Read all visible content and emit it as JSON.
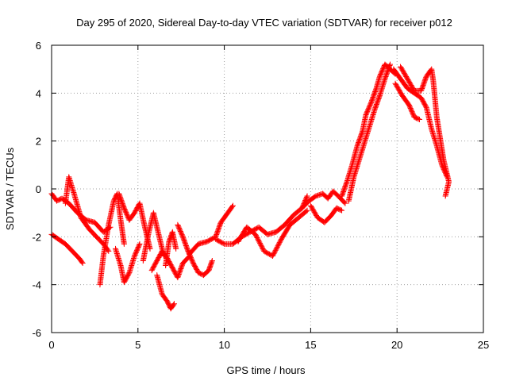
{
  "chart_data": {
    "type": "scatter",
    "title": "Day 295 of 2020, Sidereal Day-to-day VTEC variation (SDTVAR) for receiver p012",
    "xlabel": "GPS time / hours",
    "ylabel": "SDTVAR / TECUs",
    "xlim": [
      0,
      25
    ],
    "ylim": [
      -6,
      6
    ],
    "xticks": [
      0,
      5,
      10,
      15,
      20,
      25
    ],
    "yticks": [
      -6,
      -4,
      -2,
      0,
      2,
      4,
      6
    ],
    "grid": true,
    "marker": "+",
    "color": "#ff0000",
    "series": [
      {
        "name": "SDTVAR",
        "tracks": [
          [
            [
              0.0,
              -0.2
            ],
            [
              0.3,
              -0.5
            ],
            [
              0.6,
              -0.4
            ],
            [
              1.0,
              -0.6
            ],
            [
              1.5,
              -1.0
            ],
            [
              2.0,
              -1.3
            ],
            [
              2.5,
              -1.4
            ],
            [
              3.0,
              -1.8
            ],
            [
              3.4,
              -1.6
            ]
          ],
          [
            [
              0.0,
              -1.9
            ],
            [
              0.4,
              -2.1
            ],
            [
              0.8,
              -2.3
            ],
            [
              1.2,
              -2.6
            ],
            [
              1.6,
              -2.9
            ],
            [
              1.8,
              -3.1
            ]
          ],
          [
            [
              0.8,
              -0.6
            ],
            [
              1.0,
              0.5
            ],
            [
              1.3,
              -0.2
            ],
            [
              1.7,
              -1.2
            ],
            [
              2.2,
              -1.7
            ],
            [
              2.6,
              -2.0
            ],
            [
              3.0,
              -2.3
            ],
            [
              3.3,
              -2.6
            ]
          ],
          [
            [
              2.8,
              -4.0
            ],
            [
              3.0,
              -2.8
            ],
            [
              3.3,
              -1.5
            ],
            [
              3.6,
              -0.5
            ],
            [
              3.8,
              -0.2
            ],
            [
              4.0,
              -1.3
            ],
            [
              4.2,
              -2.3
            ]
          ],
          [
            [
              3.7,
              -2.5
            ],
            [
              4.0,
              -3.2
            ],
            [
              4.2,
              -3.9
            ],
            [
              4.5,
              -3.5
            ],
            [
              4.8,
              -2.8
            ],
            [
              5.1,
              -2.3
            ]
          ],
          [
            [
              3.9,
              -0.2
            ],
            [
              4.2,
              -0.8
            ],
            [
              4.5,
              -1.3
            ],
            [
              4.8,
              -1.0
            ],
            [
              5.1,
              -0.6
            ],
            [
              5.4,
              -1.6
            ],
            [
              5.7,
              -2.5
            ]
          ],
          [
            [
              5.3,
              -3.0
            ],
            [
              5.6,
              -1.9
            ],
            [
              5.9,
              -1.0
            ],
            [
              6.2,
              -1.9
            ],
            [
              6.5,
              -2.8
            ]
          ],
          [
            [
              5.8,
              -3.4
            ],
            [
              6.1,
              -3.0
            ],
            [
              6.4,
              -2.6
            ],
            [
              6.7,
              -2.9
            ],
            [
              7.0,
              -3.3
            ],
            [
              7.3,
              -3.7
            ],
            [
              7.6,
              -3.1
            ],
            [
              8.0,
              -2.8
            ]
          ],
          [
            [
              6.1,
              -3.6
            ],
            [
              6.4,
              -4.4
            ],
            [
              6.7,
              -4.7
            ],
            [
              6.9,
              -5.0
            ],
            [
              7.1,
              -4.8
            ]
          ],
          [
            [
              6.6,
              -3.2
            ],
            [
              6.8,
              -2.2
            ],
            [
              7.0,
              -1.8
            ],
            [
              7.2,
              -2.5
            ]
          ],
          [
            [
              7.3,
              -1.5
            ],
            [
              7.6,
              -2.0
            ],
            [
              7.9,
              -2.6
            ],
            [
              8.2,
              -3.1
            ],
            [
              8.5,
              -3.5
            ],
            [
              8.8,
              -3.6
            ],
            [
              9.1,
              -3.4
            ],
            [
              9.3,
              -3.0
            ]
          ],
          [
            [
              8.0,
              -2.7
            ],
            [
              8.5,
              -2.3
            ],
            [
              9.0,
              -2.2
            ],
            [
              9.5,
              -2.0
            ],
            [
              9.8,
              -1.4
            ],
            [
              10.2,
              -1.0
            ],
            [
              10.5,
              -0.7
            ]
          ],
          [
            [
              9.5,
              -2.1
            ],
            [
              10.0,
              -2.3
            ],
            [
              10.5,
              -2.3
            ],
            [
              11.0,
              -2.0
            ],
            [
              11.5,
              -1.8
            ],
            [
              12.0,
              -1.6
            ],
            [
              12.5,
              -1.9
            ],
            [
              13.0,
              -1.8
            ],
            [
              13.5,
              -1.5
            ],
            [
              14.0,
              -1.1
            ],
            [
              14.5,
              -0.8
            ],
            [
              14.8,
              -0.3
            ]
          ],
          [
            [
              10.8,
              -2.2
            ],
            [
              11.3,
              -1.6
            ],
            [
              11.8,
              -1.9
            ],
            [
              12.3,
              -2.6
            ],
            [
              12.8,
              -2.8
            ],
            [
              13.3,
              -2.1
            ],
            [
              13.8,
              -1.5
            ],
            [
              14.3,
              -1.2
            ],
            [
              14.8,
              -0.9
            ]
          ],
          [
            [
              14.5,
              -0.8
            ],
            [
              14.9,
              -0.5
            ],
            [
              15.3,
              -0.3
            ],
            [
              15.7,
              -0.2
            ],
            [
              16.0,
              -0.4
            ],
            [
              16.3,
              -0.1
            ],
            [
              16.6,
              -0.3
            ],
            [
              17.0,
              -0.6
            ]
          ],
          [
            [
              15.0,
              -0.7
            ],
            [
              15.4,
              -1.2
            ],
            [
              15.8,
              -1.4
            ],
            [
              16.2,
              -1.1
            ],
            [
              16.5,
              -0.8
            ],
            [
              16.8,
              -0.9
            ]
          ],
          [
            [
              16.8,
              -0.3
            ],
            [
              17.1,
              0.3
            ],
            [
              17.4,
              1.0
            ],
            [
              17.7,
              1.8
            ],
            [
              18.0,
              2.4
            ],
            [
              18.2,
              3.1
            ],
            [
              18.5,
              3.6
            ],
            [
              18.8,
              4.2
            ],
            [
              19.0,
              4.7
            ],
            [
              19.3,
              5.2
            ],
            [
              19.6,
              5.0
            ],
            [
              19.9,
              4.8
            ]
          ],
          [
            [
              17.2,
              -0.5
            ],
            [
              17.5,
              0.5
            ],
            [
              17.8,
              1.2
            ],
            [
              18.1,
              1.9
            ],
            [
              18.4,
              2.6
            ],
            [
              18.7,
              3.3
            ],
            [
              19.0,
              3.9
            ],
            [
              19.3,
              4.6
            ],
            [
              19.6,
              5.2
            ]
          ],
          [
            [
              19.8,
              5.0
            ],
            [
              20.2,
              4.6
            ],
            [
              20.6,
              4.2
            ],
            [
              21.0,
              4.0
            ],
            [
              21.4,
              3.8
            ],
            [
              21.7,
              3.4
            ],
            [
              22.0,
              2.5
            ],
            [
              22.3,
              1.8
            ],
            [
              22.6,
              1.0
            ],
            [
              22.9,
              0.5
            ]
          ],
          [
            [
              19.9,
              4.4
            ],
            [
              20.3,
              3.9
            ],
            [
              20.7,
              3.5
            ],
            [
              21.0,
              3.0
            ],
            [
              21.3,
              2.9
            ]
          ],
          [
            [
              20.2,
              5.1
            ],
            [
              20.6,
              4.6
            ],
            [
              21.0,
              4.1
            ],
            [
              21.4,
              4.1
            ],
            [
              21.7,
              4.7
            ],
            [
              22.0,
              5.0
            ],
            [
              22.1,
              4.5
            ],
            [
              22.3,
              3.0
            ],
            [
              22.5,
              2.1
            ],
            [
              22.7,
              1.2
            ],
            [
              23.0,
              0.3
            ],
            [
              22.8,
              -0.3
            ]
          ]
        ]
      }
    ]
  }
}
